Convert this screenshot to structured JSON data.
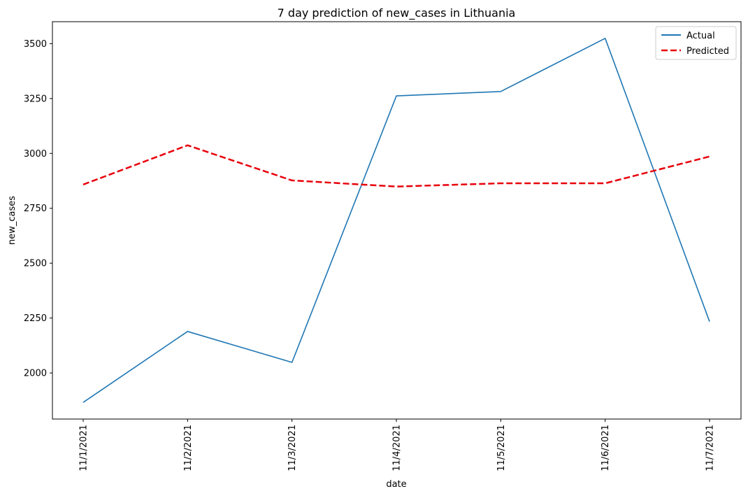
{
  "chart_data": {
    "type": "line",
    "title": "7 day prediction of new_cases in Lithuania",
    "xlabel": "date",
    "ylabel": "new_cases",
    "categories": [
      "11/1/2021",
      "11/2/2021",
      "11/3/2021",
      "11/4/2021",
      "11/5/2021",
      "11/6/2021",
      "11/7/2021"
    ],
    "series": [
      {
        "name": "Actual",
        "values": [
          1866,
          2189,
          2048,
          3262,
          3282,
          3524,
          2234
        ],
        "color": "#1f77b4",
        "style": "solid"
      },
      {
        "name": "Predicted",
        "values": [
          2858,
          3037,
          2877,
          2849,
          2864,
          2864,
          2986
        ],
        "color": "#e8000b",
        "style": "dashed"
      }
    ],
    "ylim": [
      1790,
      3600
    ],
    "yticks": [
      2000,
      2250,
      2500,
      2750,
      3000,
      3250,
      3500
    ],
    "grid": false,
    "legend": "top-right"
  }
}
